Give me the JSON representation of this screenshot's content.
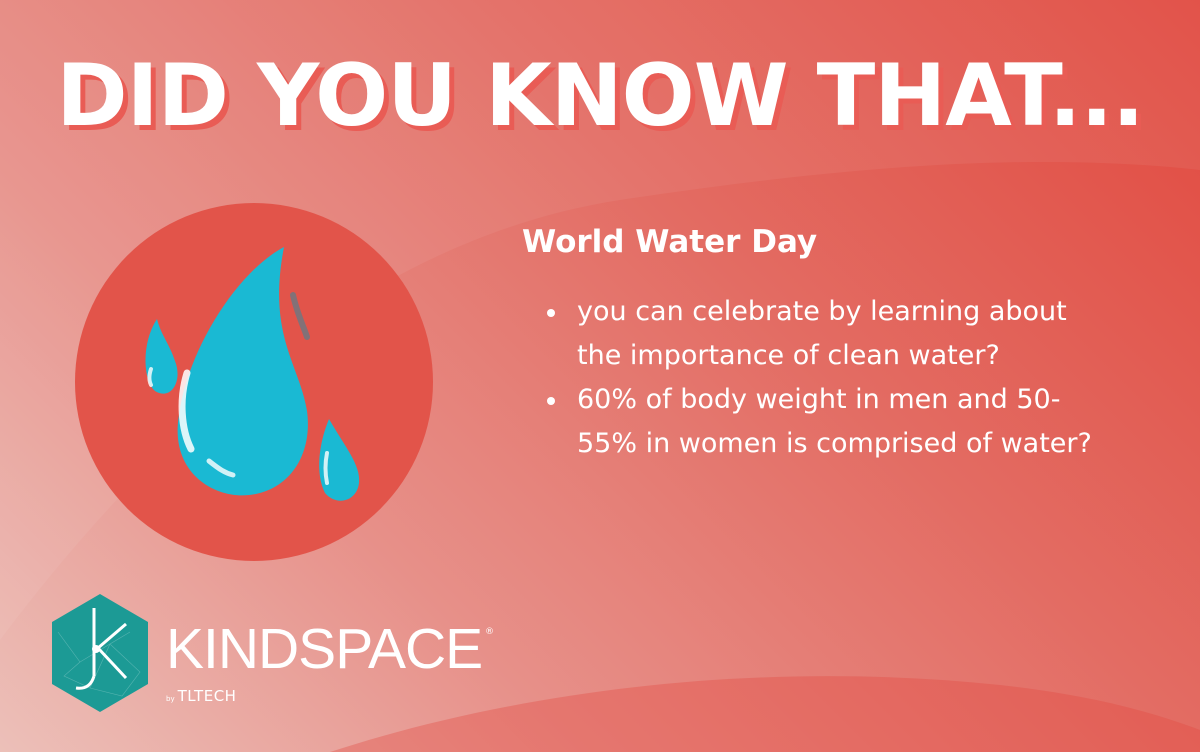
{
  "poster": {
    "headline": "DID YOU KNOW THAT...",
    "subtitle": "World Water Day",
    "facts": [
      "you can celebrate by learning about the importance of clean water?",
      "60% of body weight in men and 50-55% in women is comprised of water?"
    ]
  },
  "brand": {
    "name": "KINDSPACE",
    "registered": "®",
    "by": "by",
    "maker": "TLTECH",
    "monogram": "K"
  },
  "icons": [
    "water-drop-icon",
    "kindspace-logo"
  ],
  "colors": {
    "background_light": "#ecc0b9",
    "background_dark": "#e1493f",
    "circle": "#e2544a",
    "water": "#1ab9d3",
    "logo": "#1c9a95",
    "text": "#ffffff"
  }
}
